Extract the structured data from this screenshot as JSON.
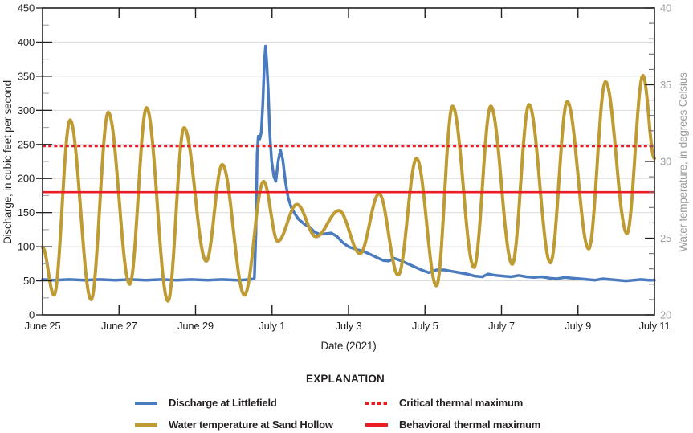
{
  "chart_data": {
    "type": "line",
    "xlabel": "Date (2021)",
    "ylabel_left": "Discharge, in cubic feet per second",
    "ylabel_right": "Water temperature, in degrees Celsius",
    "x_axis": {
      "start_day": 0,
      "end_day": 16,
      "tick_labels": [
        {
          "day": 0,
          "label": "June 25"
        },
        {
          "day": 2,
          "label": "June 27"
        },
        {
          "day": 4,
          "label": "June 29"
        },
        {
          "day": 6,
          "label": "July 1"
        },
        {
          "day": 8,
          "label": "July 3"
        },
        {
          "day": 10,
          "label": "July 5"
        },
        {
          "day": 12,
          "label": "July 7"
        },
        {
          "day": 14,
          "label": "July 9"
        },
        {
          "day": 16,
          "label": "July 11"
        }
      ],
      "interior_tick_days": [
        2,
        4,
        6,
        8,
        10,
        12,
        14
      ]
    },
    "y_left": {
      "min": 0,
      "max": 450,
      "major": 50,
      "minor": 25,
      "grid": true
    },
    "y_right": {
      "min": 20,
      "max": 40,
      "major": 5,
      "minor": 1
    },
    "series": [
      {
        "name": "Discharge at Littlefield",
        "axis": "left",
        "units": "cubic feet per second",
        "color": "#4a7bbe",
        "width": 3.5,
        "points": [
          [
            0,
            52
          ],
          [
            0.3,
            51
          ],
          [
            0.7,
            52
          ],
          [
            1.1,
            51
          ],
          [
            1.5,
            52
          ],
          [
            1.9,
            51
          ],
          [
            2.3,
            52
          ],
          [
            2.7,
            51
          ],
          [
            3.1,
            52
          ],
          [
            3.5,
            51
          ],
          [
            3.9,
            52
          ],
          [
            4.3,
            51
          ],
          [
            4.7,
            52
          ],
          [
            5.1,
            51
          ],
          [
            5.45,
            52
          ],
          [
            5.54,
            54
          ],
          [
            5.58,
            120
          ],
          [
            5.61,
            235
          ],
          [
            5.64,
            262
          ],
          [
            5.68,
            258
          ],
          [
            5.72,
            268
          ],
          [
            5.76,
            310
          ],
          [
            5.8,
            370
          ],
          [
            5.83,
            394
          ],
          [
            5.86,
            372
          ],
          [
            5.9,
            330
          ],
          [
            5.94,
            268
          ],
          [
            5.99,
            225
          ],
          [
            6.05,
            203
          ],
          [
            6.1,
            196
          ],
          [
            6.16,
            225
          ],
          [
            6.22,
            242
          ],
          [
            6.28,
            228
          ],
          [
            6.35,
            196
          ],
          [
            6.42,
            172
          ],
          [
            6.5,
            158
          ],
          [
            6.6,
            148
          ],
          [
            6.7,
            140
          ],
          [
            6.85,
            133
          ],
          [
            7,
            128
          ],
          [
            7.1,
            122
          ],
          [
            7.25,
            118
          ],
          [
            7.4,
            119
          ],
          [
            7.55,
            120
          ],
          [
            7.7,
            115
          ],
          [
            7.85,
            106
          ],
          [
            8,
            100
          ],
          [
            8.2,
            96
          ],
          [
            8.4,
            93
          ],
          [
            8.6,
            88
          ],
          [
            8.75,
            84
          ],
          [
            8.9,
            80
          ],
          [
            9.05,
            79
          ],
          [
            9.2,
            83
          ],
          [
            9.35,
            80
          ],
          [
            9.55,
            75
          ],
          [
            9.75,
            70
          ],
          [
            9.95,
            65
          ],
          [
            10.1,
            62
          ],
          [
            10.3,
            66
          ],
          [
            10.5,
            66
          ],
          [
            10.7,
            64
          ],
          [
            10.9,
            62
          ],
          [
            11.1,
            60
          ],
          [
            11.3,
            57
          ],
          [
            11.5,
            56
          ],
          [
            11.65,
            60
          ],
          [
            11.85,
            58
          ],
          [
            12.05,
            57
          ],
          [
            12.25,
            56
          ],
          [
            12.45,
            58
          ],
          [
            12.65,
            56
          ],
          [
            12.85,
            55
          ],
          [
            13.05,
            56
          ],
          [
            13.25,
            54
          ],
          [
            13.45,
            53
          ],
          [
            13.65,
            55
          ],
          [
            13.85,
            54
          ],
          [
            14.05,
            53
          ],
          [
            14.25,
            52
          ],
          [
            14.45,
            51
          ],
          [
            14.65,
            53
          ],
          [
            14.85,
            52
          ],
          [
            15.05,
            51
          ],
          [
            15.25,
            50
          ],
          [
            15.45,
            51
          ],
          [
            15.65,
            52
          ],
          [
            15.85,
            51
          ],
          [
            16,
            51
          ]
        ]
      },
      {
        "name": "Water temperature at Sand Hollow",
        "axis": "right",
        "units": "degrees Celsius",
        "color": "#be9b33",
        "width": 4,
        "interpolation": "cosine",
        "extrema": [
          [
            0,
            24.4
          ],
          [
            0.3,
            21.3
          ],
          [
            0.72,
            32.7
          ],
          [
            1.27,
            21.0
          ],
          [
            1.72,
            33.2
          ],
          [
            2.28,
            22.0
          ],
          [
            2.72,
            33.5
          ],
          [
            3.28,
            20.9
          ],
          [
            3.7,
            32.2
          ],
          [
            4.28,
            23.5
          ],
          [
            4.7,
            29.8
          ],
          [
            5.28,
            21.3
          ],
          [
            5.78,
            28.7
          ],
          [
            6.15,
            24.8
          ],
          [
            6.65,
            27.2
          ],
          [
            7.15,
            25.1
          ],
          [
            7.75,
            26.8
          ],
          [
            8.3,
            24.0
          ],
          [
            8.8,
            27.9
          ],
          [
            9.3,
            22.6
          ],
          [
            9.78,
            30.2
          ],
          [
            10.3,
            21.9
          ],
          [
            10.72,
            33.6
          ],
          [
            11.28,
            23.1
          ],
          [
            11.72,
            33.6
          ],
          [
            12.28,
            23.3
          ],
          [
            12.72,
            33.7
          ],
          [
            13.28,
            23.4
          ],
          [
            13.72,
            33.9
          ],
          [
            14.28,
            24.3
          ],
          [
            14.72,
            35.2
          ],
          [
            15.28,
            25.3
          ],
          [
            15.7,
            35.6
          ],
          [
            16,
            30.2
          ]
        ]
      }
    ],
    "reference_lines": [
      {
        "name": "Critical thermal maximum",
        "value_celsius": 31,
        "style": "dotted",
        "color": "#ec1c24"
      },
      {
        "name": "Behavioral thermal maximum",
        "value_celsius": 28,
        "style": "solid",
        "color": "#ec1c24"
      }
    ],
    "layout": {
      "grid_color": "#dcdcdc",
      "frame_color": "#231f20",
      "right_text_color": "#9c9ea1"
    }
  },
  "legend": {
    "title": "EXPLANATION",
    "items": [
      {
        "label": "Discharge at Littlefield",
        "color": "#4a7bbe",
        "style": "solid"
      },
      {
        "label": "Water temperature at Sand Hollow",
        "color": "#be9b33",
        "style": "solid"
      },
      {
        "label": "Critical thermal maximum",
        "color": "#ec1c24",
        "style": "dotted"
      },
      {
        "label": "Behavioral thermal maximum",
        "color": "#ec1c24",
        "style": "solid"
      }
    ]
  }
}
